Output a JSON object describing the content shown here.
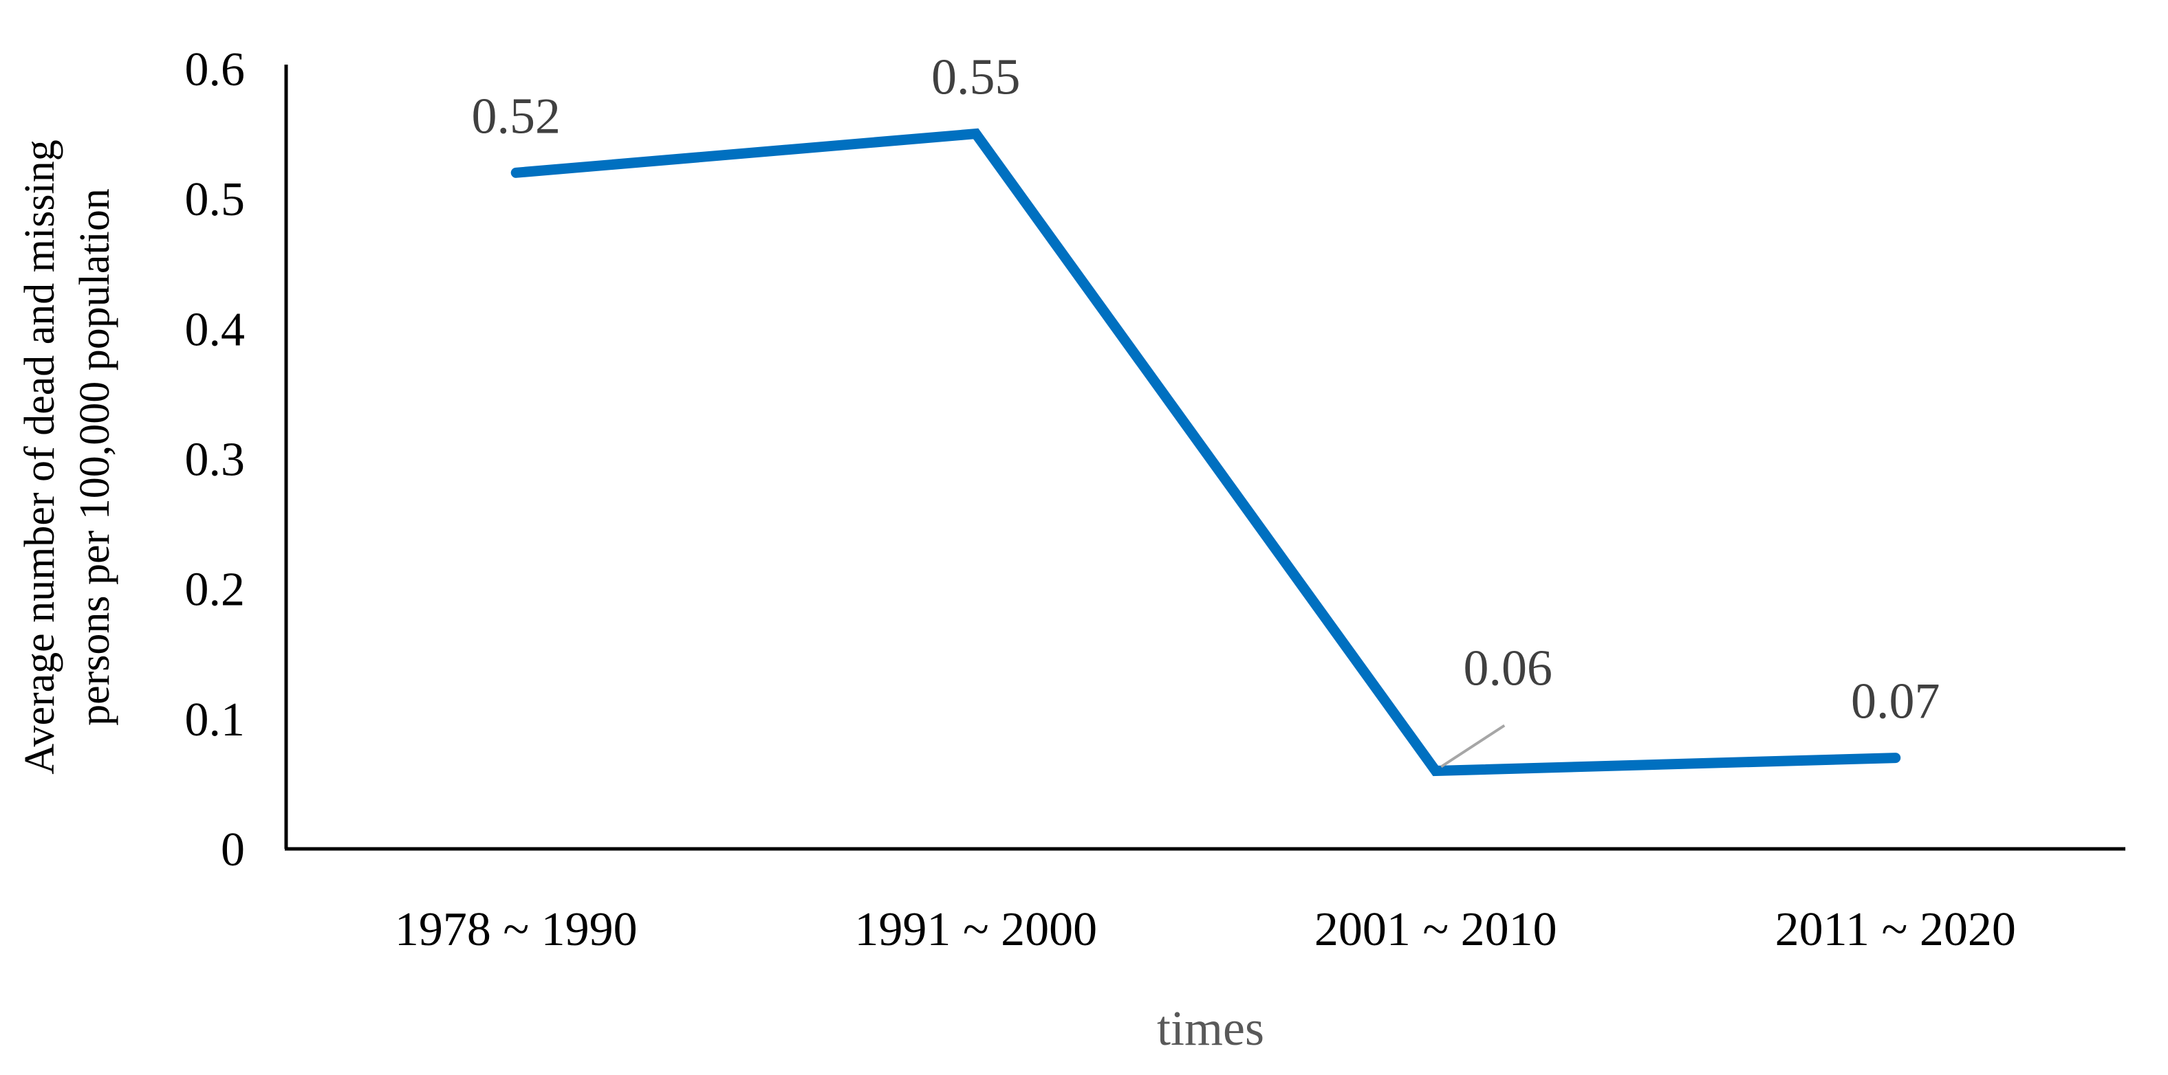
{
  "chart_data": {
    "type": "line",
    "categories": [
      "1978 ~ 1990",
      "1991 ~ 2000",
      "2001 ~ 2010",
      "2011 ~ 2020"
    ],
    "series": [
      {
        "values": [
          0.52,
          0.55,
          0.06,
          0.07
        ],
        "color": "#0070C0"
      }
    ],
    "data_labels": [
      "0.52",
      "0.55",
      "0.06",
      "0.07"
    ],
    "xlabel": "times",
    "ylabel_lines": [
      "Average number of dead and missing",
      "persons per 100,000 population"
    ],
    "ylim": [
      0,
      0.6
    ],
    "yticks": [
      "0",
      "0.1",
      "0.2",
      "0.3",
      "0.4",
      "0.5",
      "0.6"
    ],
    "grid": false,
    "legend": "none"
  }
}
